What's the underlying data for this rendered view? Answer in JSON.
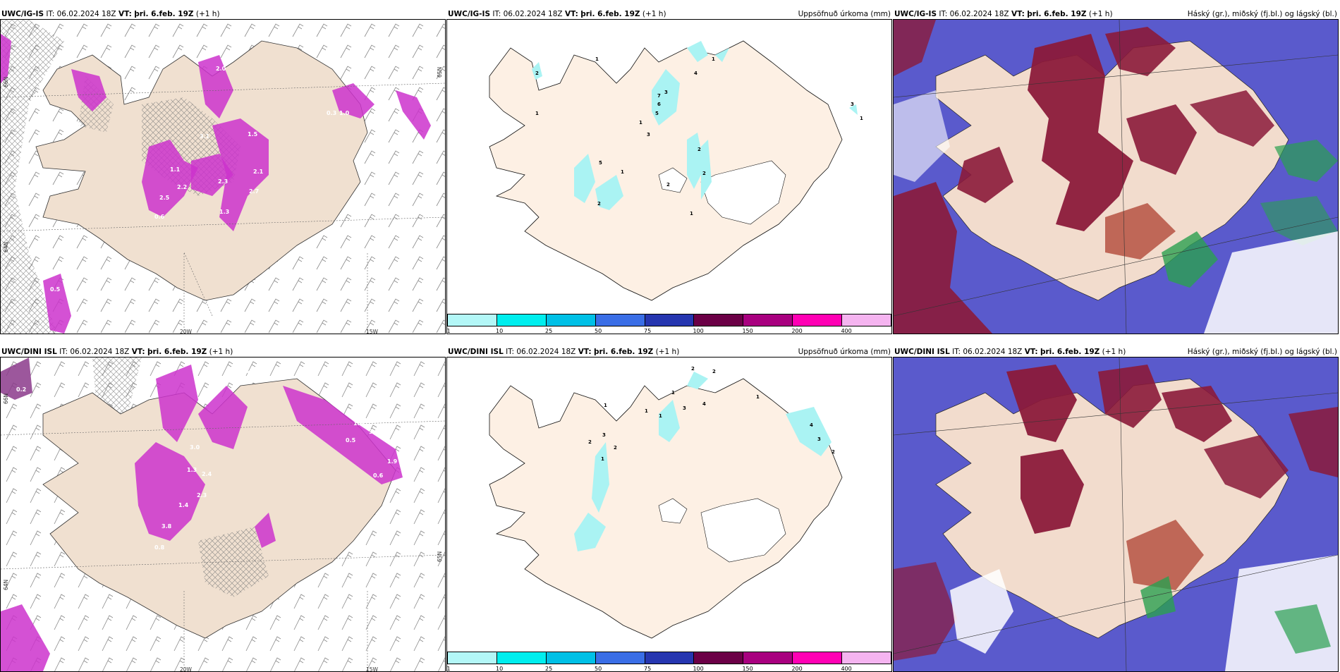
{
  "panels": [
    {
      "id": "ig-wind",
      "title_model": "UWC/IG-IS",
      "title_it": "IT: 06.02.2024 18Z",
      "title_vt_label": "VT:",
      "title_vt": "þri. 6.feb. 19Z",
      "title_offset": "(+1 h)",
      "title_right": "",
      "lon_labels": [
        "20W",
        "15W"
      ],
      "lat_labels": [
        "66N",
        "64N",
        "65N"
      ],
      "value_labels": [
        "2.0",
        "1.1",
        "2.2",
        "3.1",
        "2.3",
        "1.3",
        "0.6",
        "2.5",
        "2.1",
        "2.7",
        "0.3",
        "1.0",
        "0.5",
        "1.5"
      ]
    },
    {
      "id": "ig-precip",
      "title_model": "UWC/IG-IS",
      "title_it": "IT: 06.02.2024 18Z",
      "title_vt_label": "VT:",
      "title_vt": "þri. 6.feb. 19Z",
      "title_offset": "(+1 h)",
      "title_right": "Uppsöfnuð úrkoma (mm)",
      "contour_labels": [
        "1",
        "2",
        "1",
        "4",
        "1",
        "3",
        "7",
        "6",
        "5",
        "1",
        "3",
        "2",
        "2",
        "5",
        "1",
        "2",
        "2",
        "1",
        "3",
        "1"
      ]
    },
    {
      "id": "ig-cloud",
      "title_model": "UWC/IG-IS",
      "title_it": "IT: 06.02.2024 18Z",
      "title_vt_label": "VT:",
      "title_vt": "þri. 6.feb. 19Z",
      "title_offset": "(+1 h)",
      "title_right": "Háský (gr.), miðský (fj.bl.) og lágský (bl.)"
    },
    {
      "id": "dini-wind",
      "title_model": "UWC/DINI ISL",
      "title_it": "IT: 06.02.2024 18Z",
      "title_vt_label": "VT:",
      "title_vt": "þri. 6.feb. 19Z",
      "title_offset": "(+1 h)",
      "title_right": "",
      "lon_labels": [
        "20W",
        "15W"
      ],
      "lat_labels": [
        "66N",
        "64N",
        "65N"
      ],
      "value_labels": [
        "0.2",
        "1.6",
        "3.0",
        "1.3",
        "2.4",
        "2.3",
        "1.4",
        "3.8",
        "0.8",
        "0.5",
        "1.9",
        "3.6",
        "1.0",
        "0.6"
      ]
    },
    {
      "id": "dini-precip",
      "title_model": "UWC/DINI ISL",
      "title_it": "IT: 06.02.2024 18Z",
      "title_vt_label": "VT:",
      "title_vt": "þri. 6.feb. 19Z",
      "title_offset": "(+1 h)",
      "title_right": "Uppsöfnuð úrkoma (mm)",
      "contour_labels": [
        "2",
        "2",
        "1",
        "1",
        "1",
        "1",
        "3",
        "4",
        "1",
        "3",
        "2",
        "1",
        "2",
        "3",
        "2",
        "4"
      ]
    },
    {
      "id": "dini-cloud",
      "title_model": "UWC/DINI ISL",
      "title_it": "IT: 06.02.2024 18Z",
      "title_vt_label": "VT:",
      "title_vt": "þri. 6.feb. 19Z",
      "title_offset": "(+1 h)",
      "title_right": "Háský (gr.), miðský (fj.bl.) og lágský (bl.)"
    }
  ],
  "colorbar": {
    "ticks": [
      "1",
      "10",
      "25",
      "50",
      "75",
      "100",
      "150",
      "200",
      "400"
    ],
    "colors": [
      "#b3f7f7",
      "#00eeee",
      "#00c0e6",
      "#3a6ee6",
      "#2636b0",
      "#6b0046",
      "#a8007f",
      "#ff00b4",
      "#f5b4f0"
    ]
  },
  "colors": {
    "land": "#f0e0d0",
    "precip_land": "#fdf0e4",
    "magenta": "#cc33cc",
    "cloud_high": "#8b1a3a",
    "cloud_mid": "#5a5acc",
    "cloud_low": "#2aa050",
    "cyan": "#aaf3f3"
  }
}
